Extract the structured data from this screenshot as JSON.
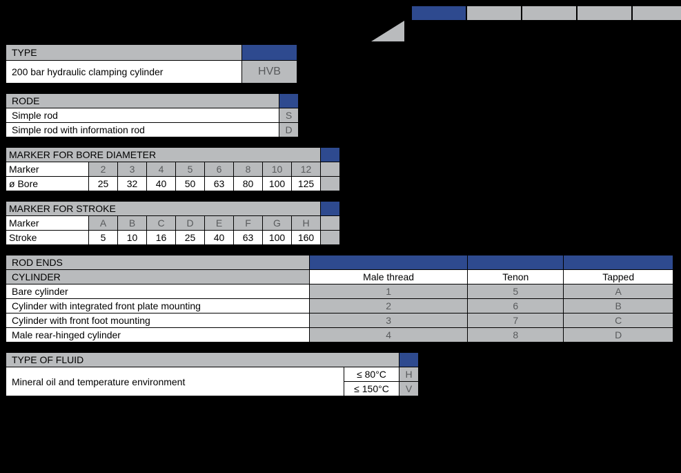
{
  "colors": {
    "background": "#000000",
    "header_grey": "#b9bbbd",
    "cell_white": "#ffffff",
    "accent_blue": "#2e4a8f",
    "border": "#000000",
    "code_text": "#585a5c"
  },
  "top_box_count": 6,
  "type_section": {
    "header": "TYPE",
    "description": "200 bar hydraulic clamping cylinder",
    "code": "HVB"
  },
  "rode_section": {
    "header": "RODE",
    "rows": [
      {
        "description": "Simple rod",
        "code": "S"
      },
      {
        "description": "Simple rod with information rod",
        "code": "D"
      }
    ]
  },
  "bore_section": {
    "header": "MARKER FOR BORE DIAMETER",
    "label_marker": "Marker",
    "label_bore": "ø Bore",
    "markers": [
      "2",
      "3",
      "4",
      "5",
      "6",
      "8",
      "10",
      "12"
    ],
    "bores": [
      "25",
      "32",
      "40",
      "50",
      "63",
      "80",
      "100",
      "125"
    ]
  },
  "stroke_section": {
    "header": "MARKER FOR STROKE",
    "label_marker": "Marker",
    "label_stroke": "Stroke",
    "markers": [
      "A",
      "B",
      "C",
      "D",
      "E",
      "F",
      "G",
      "H"
    ],
    "strokes": [
      "5",
      "10",
      "16",
      "25",
      "40",
      "63",
      "100",
      "160"
    ]
  },
  "rodends_section": {
    "header": "ROD ENDS",
    "cyl_header": "CYLINDER",
    "column_headers": [
      "Male thread",
      "Tenon",
      "Tapped"
    ],
    "rows": [
      {
        "description": "Bare cylinder",
        "values": [
          "1",
          "5",
          "A"
        ]
      },
      {
        "description": "Cylinder with integrated front plate mounting",
        "values": [
          "2",
          "6",
          "B"
        ]
      },
      {
        "description": "Cylinder with front foot mounting",
        "values": [
          "3",
          "7",
          "C"
        ]
      },
      {
        "description": "Male rear-hinged cylinder",
        "values": [
          "4",
          "8",
          "D"
        ]
      }
    ]
  },
  "fluid_section": {
    "header": "TYPE OF FLUID",
    "description": "Mineral oil and temperature environment",
    "rows": [
      {
        "temp": "≤ 80°C",
        "code": "H"
      },
      {
        "temp": "≤ 150°C",
        "code": "V"
      }
    ]
  }
}
